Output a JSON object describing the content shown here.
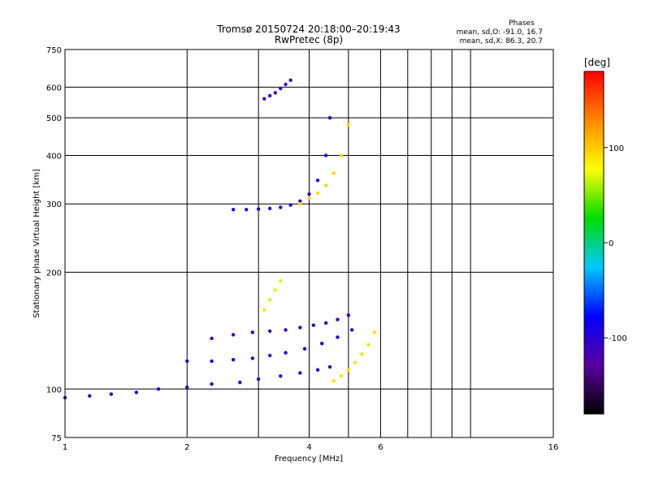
{
  "chart_data": {
    "type": "scatter",
    "title": "Tromsø 20150724 20:18:00–20:19:43",
    "subtitle": "RwPretec (8p)",
    "xlabel": "Frequency [MHz]",
    "ylabel": "Stationary phase Virtual Height [km]",
    "x_scale": "log",
    "y_scale": "log",
    "xlim": [
      1,
      16
    ],
    "ylim": [
      75,
      750
    ],
    "x_ticks": [
      1,
      2,
      4,
      6,
      16
    ],
    "x_tick_labels": [
      "1",
      "2",
      "4",
      "6",
      "16"
    ],
    "x_grid_lines": [
      1,
      2,
      3,
      4,
      5,
      6,
      7,
      8,
      9,
      10,
      16
    ],
    "y_ticks": [
      75,
      100,
      200,
      300,
      400,
      500,
      600,
      750
    ],
    "y_tick_labels": [
      "75",
      "100",
      "200",
      "300",
      "400",
      "500",
      "600",
      "750"
    ],
    "grid": true,
    "phase_info": {
      "heading": "Phases",
      "line_o": "mean, sd,O: -91.0, 16.7",
      "line_x": "mean, sd,X:  86.3, 20.7"
    },
    "colorbar": {
      "label": "[deg]",
      "min": -180,
      "max": 180,
      "ticks": [
        100,
        0,
        -100
      ],
      "tick_labels": [
        "100",
        "0",
        "-100"
      ],
      "colors": [
        "#000000",
        "#5a00a0",
        "#0000ff",
        "#00c8ff",
        "#00dc00",
        "#ffff00",
        "#ff8800",
        "#ff0000"
      ]
    },
    "traces": [
      {
        "name": "",
        "x": [
          1.0,
          1.15,
          1.3,
          1.5,
          1.7,
          2.0,
          2.3,
          2.7,
          3.0,
          3.4,
          3.8,
          4.2,
          4.5
        ],
        "y": [
          95,
          96,
          97,
          98,
          100,
          101,
          103,
          104,
          106,
          108,
          110,
          112,
          114
        ],
        "phase": -100
      },
      {
        "name": "",
        "x": [
          2.0,
          2.3,
          2.6,
          2.9,
          3.2,
          3.5,
          3.9,
          4.3,
          4.7,
          5.1
        ],
        "y": [
          118,
          118,
          119,
          120,
          122,
          124,
          127,
          131,
          136,
          142
        ],
        "phase": -90
      },
      {
        "name": "",
        "x": [
          2.3,
          2.6,
          2.9,
          3.2,
          3.5,
          3.8,
          4.1,
          4.4,
          4.7,
          5.0
        ],
        "y": [
          135,
          138,
          140,
          141,
          142,
          144,
          146,
          148,
          151,
          155
        ],
        "phase": -105
      },
      {
        "name": "",
        "x": [
          2.6,
          2.8,
          3.0,
          3.2,
          3.4,
          3.6,
          3.8,
          4.0,
          4.2,
          4.4,
          4.5
        ],
        "y": [
          290,
          290,
          291,
          292,
          294,
          298,
          305,
          318,
          345,
          400,
          500
        ],
        "phase": -100
      },
      {
        "name": "",
        "x": [
          3.8,
          4.0,
          4.2,
          4.4,
          4.6,
          4.8,
          5.0
        ],
        "y": [
          300,
          310,
          320,
          335,
          360,
          400,
          480
        ],
        "phase": 95
      },
      {
        "name": "",
        "x": [
          3.1,
          3.2,
          3.3,
          3.4,
          3.5,
          3.6
        ],
        "y": [
          560,
          570,
          580,
          595,
          610,
          625
        ],
        "phase": -110
      },
      {
        "name": "",
        "x": [
          4.6,
          4.8,
          5.0,
          5.2,
          5.4,
          5.6,
          5.8
        ],
        "y": [
          105,
          108,
          112,
          117,
          123,
          130,
          140
        ],
        "phase": 90
      },
      {
        "name": "",
        "x": [
          3.1,
          3.2,
          3.3,
          3.4
        ],
        "y": [
          160,
          170,
          180,
          190
        ],
        "phase": 70
      }
    ]
  }
}
